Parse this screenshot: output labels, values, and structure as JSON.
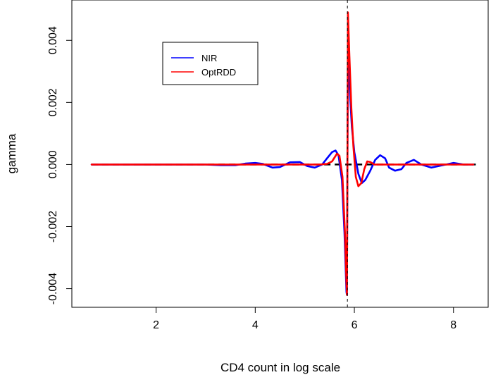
{
  "chart_data": {
    "type": "line",
    "title": "",
    "xlabel": "CD4 count in log scale",
    "ylabel": "gamma",
    "xlim": [
      0.3,
      8.7
    ],
    "ylim": [
      -0.0046,
      0.0053
    ],
    "x_ticks": [
      2,
      4,
      6,
      8
    ],
    "x_tick_labels": [
      "2",
      "4",
      "6",
      "8"
    ],
    "y_ticks": [
      -0.004,
      -0.002,
      0.0,
      0.002,
      0.004
    ],
    "y_tick_labels": [
      "-0.004",
      "-0.002",
      "0.000",
      "0.002",
      "0.004"
    ],
    "cutoff_x": 5.86,
    "zero_line_y": 0,
    "grid": false,
    "legend": {
      "position": "top-left",
      "entries": [
        {
          "label": "NIR",
          "color": "#0000ff"
        },
        {
          "label": "OptRDD",
          "color": "#ff0000"
        }
      ]
    },
    "series": [
      {
        "name": "NIR",
        "color": "#0000ff",
        "points": [
          [
            0.7,
            0.0
          ],
          [
            2.0,
            0.0
          ],
          [
            3.0,
            0.0
          ],
          [
            3.3,
            -2e-05
          ],
          [
            3.6,
            -2e-05
          ],
          [
            3.8,
            3e-05
          ],
          [
            4.0,
            5e-05
          ],
          [
            4.15,
            2e-05
          ],
          [
            4.35,
            -0.0001
          ],
          [
            4.5,
            -8e-05
          ],
          [
            4.7,
            7e-05
          ],
          [
            4.9,
            8e-05
          ],
          [
            5.05,
            -5e-05
          ],
          [
            5.2,
            -0.0001
          ],
          [
            5.35,
            0.0
          ],
          [
            5.45,
            0.0002
          ],
          [
            5.55,
            0.0004
          ],
          [
            5.62,
            0.00045
          ],
          [
            5.68,
            0.0003
          ],
          [
            5.75,
            -0.0005
          ],
          [
            5.8,
            -0.0022
          ],
          [
            5.84,
            -0.0041
          ],
          [
            5.85,
            -0.0042
          ],
          [
            5.86,
            0.0
          ],
          [
            5.87,
            0.0037
          ],
          [
            5.9,
            0.0026
          ],
          [
            5.95,
            0.0012
          ],
          [
            6.0,
            0.0004
          ],
          [
            6.08,
            -0.0003
          ],
          [
            6.15,
            -0.0006
          ],
          [
            6.22,
            -0.0005
          ],
          [
            6.32,
            -0.0002
          ],
          [
            6.42,
            0.00015
          ],
          [
            6.52,
            0.0003
          ],
          [
            6.62,
            0.0002
          ],
          [
            6.7,
            -0.0001
          ],
          [
            6.82,
            -0.0002
          ],
          [
            6.95,
            -0.00015
          ],
          [
            7.05,
            5e-05
          ],
          [
            7.2,
            0.00015
          ],
          [
            7.35,
            0.0
          ],
          [
            7.55,
            -0.0001
          ],
          [
            7.7,
            -5e-05
          ],
          [
            7.85,
            0.0
          ],
          [
            8.0,
            5e-05
          ],
          [
            8.2,
            0.0
          ],
          [
            8.4,
            0.0
          ]
        ]
      },
      {
        "name": "OptRDD",
        "color": "#ff0000",
        "points": [
          [
            0.7,
            0.0
          ],
          [
            2.0,
            0.0
          ],
          [
            4.0,
            0.0
          ],
          [
            5.3,
            0.0
          ],
          [
            5.45,
            2e-05
          ],
          [
            5.55,
            0.0001
          ],
          [
            5.65,
            0.00035
          ],
          [
            5.7,
            0.00028
          ],
          [
            5.76,
            -0.0004
          ],
          [
            5.81,
            -0.0022
          ],
          [
            5.84,
            -0.0038
          ],
          [
            5.85,
            -0.0042
          ],
          [
            5.86,
            0.0
          ],
          [
            5.87,
            0.0049
          ],
          [
            5.9,
            0.0035
          ],
          [
            5.94,
            0.0018
          ],
          [
            5.98,
            0.0006
          ],
          [
            6.03,
            -0.0004
          ],
          [
            6.08,
            -0.0007
          ],
          [
            6.14,
            -0.0006
          ],
          [
            6.2,
            -0.00015
          ],
          [
            6.26,
            0.0001
          ],
          [
            6.32,
            8e-05
          ],
          [
            6.4,
            0.0
          ],
          [
            6.6,
            0.0
          ],
          [
            7.0,
            0.0
          ],
          [
            8.4,
            0.0
          ]
        ]
      }
    ]
  }
}
